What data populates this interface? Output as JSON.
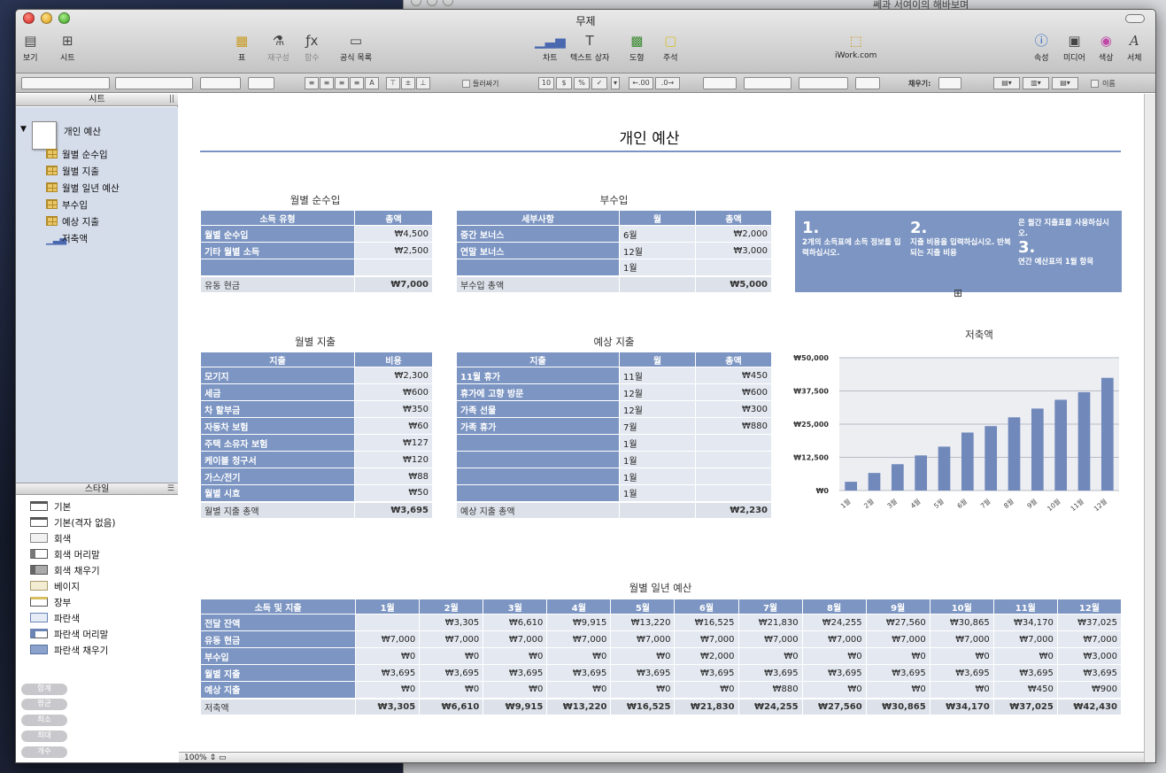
{
  "window": {
    "title": "무제"
  },
  "background_window": {
    "title": "쎄과 서여이의 해바보며"
  },
  "toolbar": {
    "view": "보기",
    "sheet": "시트",
    "table": "표",
    "reorganize": "재구성",
    "function": "함수",
    "formula_list": "공식 목록",
    "chart": "차트",
    "textbox": "텍스트 상자",
    "shape": "도형",
    "comment": "주석",
    "iwork": "iWork.com",
    "inspector": "속성",
    "media": "미디어",
    "colors": "색상",
    "fonts": "서체"
  },
  "formatbar": {
    "wrap": "들러싸기",
    "fill_label": "채우기:",
    "name_label": "이름",
    "dec_more": "←.00",
    "dec_less": ".0→"
  },
  "sidebar": {
    "sheet_header": "시트",
    "document": "개인 예산",
    "sheets": [
      {
        "label": "월별 순수입",
        "icon": "table-icon"
      },
      {
        "label": "월별 지출",
        "icon": "table-icon"
      },
      {
        "label": "월별 일년 예산",
        "icon": "table-icon"
      },
      {
        "label": "부수입",
        "icon": "table-icon"
      },
      {
        "label": "예상 지출",
        "icon": "table-icon"
      },
      {
        "label": "저축액",
        "icon": "bar-chart-icon"
      }
    ],
    "style_header": "스타일",
    "styles": [
      {
        "label": "기본"
      },
      {
        "label": "기본(격자 없음)"
      },
      {
        "label": "회색"
      },
      {
        "label": "회색 머리말"
      },
      {
        "label": "회색 채우기"
      },
      {
        "label": "베이지"
      },
      {
        "label": "장부"
      },
      {
        "label": "파란색"
      },
      {
        "label": "파란색 머리말"
      },
      {
        "label": "파란색 채우기"
      }
    ],
    "functions": [
      "합계",
      "평균",
      "최소",
      "최대",
      "개수"
    ]
  },
  "document": {
    "title": "개인 예산",
    "net_income": {
      "caption": "월별 순수입",
      "headers": [
        "소득 유형",
        "총액"
      ],
      "rows": [
        [
          "월별 순수입",
          "₩4,500"
        ],
        [
          "기타 월별 소득",
          "₩2,500"
        ],
        [
          "",
          ""
        ]
      ],
      "footer": [
        "유동 현금",
        "₩7,000"
      ]
    },
    "extra_income": {
      "caption": "부수입",
      "headers": [
        "세부사항",
        "월",
        "총액"
      ],
      "rows": [
        [
          "중간 보너스",
          "6월",
          "₩2,000"
        ],
        [
          "연말 보너스",
          "12월",
          "₩3,000"
        ],
        [
          "",
          "1월",
          ""
        ]
      ],
      "footer": [
        "부수입 총액",
        "",
        "₩5,000"
      ]
    },
    "instructions": [
      {
        "num": "1.",
        "text": "2개의 소득표에 소득 정보를 입력하십시오."
      },
      {
        "num": "2.",
        "text": "지출 비용을 입력하십시오. 반복되는 지출 비용"
      },
      {
        "num": "3.",
        "pre": "은 월간 지출표를 사용하십시오.",
        "text": "연간 예산표의 1월 항목"
      }
    ],
    "monthly_expenses": {
      "caption": "월별 지출",
      "headers": [
        "지출",
        "비용"
      ],
      "rows": [
        [
          "모기지",
          "₩2,300"
        ],
        [
          "세금",
          "₩600"
        ],
        [
          "차 할부금",
          "₩350"
        ],
        [
          "자동차 보험",
          "₩60"
        ],
        [
          "주택 소유자 보험",
          "₩127"
        ],
        [
          "케이블 청구서",
          "₩120"
        ],
        [
          "가스/전기",
          "₩88"
        ],
        [
          "월별 시효",
          "₩50"
        ]
      ],
      "footer": [
        "월별 지출 총액",
        "₩3,695"
      ]
    },
    "expected_expenses": {
      "caption": "예상 지출",
      "headers": [
        "지출",
        "월",
        "총액"
      ],
      "rows": [
        [
          "11월 휴가",
          "11월",
          "₩450"
        ],
        [
          "휴가에 고향 방문",
          "12월",
          "₩600"
        ],
        [
          "가족 선물",
          "12월",
          "₩300"
        ],
        [
          "가족 휴가",
          "7월",
          "₩880"
        ],
        [
          "",
          "1월",
          ""
        ],
        [
          "",
          "1월",
          ""
        ],
        [
          "",
          "1월",
          ""
        ],
        [
          "",
          "1월",
          ""
        ]
      ],
      "footer": [
        "예상 지출 총액",
        "",
        "₩2,230"
      ]
    },
    "annual_budget": {
      "caption": "월별 일년 예산",
      "headers": [
        "소득 및 지출",
        "1월",
        "2월",
        "3월",
        "4월",
        "5월",
        "6월",
        "7월",
        "8월",
        "9월",
        "10월",
        "11월",
        "12월"
      ],
      "rows": [
        [
          "전달 잔액",
          "",
          "₩3,305",
          "₩6,610",
          "₩9,915",
          "₩13,220",
          "₩16,525",
          "₩21,830",
          "₩24,255",
          "₩27,560",
          "₩30,865",
          "₩34,170",
          "₩37,025"
        ],
        [
          "유동 현금",
          "₩7,000",
          "₩7,000",
          "₩7,000",
          "₩7,000",
          "₩7,000",
          "₩7,000",
          "₩7,000",
          "₩7,000",
          "₩7,000",
          "₩7,000",
          "₩7,000",
          "₩7,000"
        ],
        [
          "부수입",
          "₩0",
          "₩0",
          "₩0",
          "₩0",
          "₩0",
          "₩2,000",
          "₩0",
          "₩0",
          "₩0",
          "₩0",
          "₩0",
          "₩3,000"
        ],
        [
          "월별 지출",
          "₩3,695",
          "₩3,695",
          "₩3,695",
          "₩3,695",
          "₩3,695",
          "₩3,695",
          "₩3,695",
          "₩3,695",
          "₩3,695",
          "₩3,695",
          "₩3,695",
          "₩3,695"
        ],
        [
          "예상 지출",
          "₩0",
          "₩0",
          "₩0",
          "₩0",
          "₩0",
          "₩0",
          "₩880",
          "₩0",
          "₩0",
          "₩0",
          "₩450",
          "₩900"
        ]
      ],
      "footer": [
        "저축액",
        "₩3,305",
        "₩6,610",
        "₩9,915",
        "₩13,220",
        "₩16,525",
        "₩21,830",
        "₩24,255",
        "₩27,560",
        "₩30,865",
        "₩34,170",
        "₩37,025",
        "₩42,430"
      ]
    }
  },
  "chart_data": {
    "type": "bar",
    "title": "저축액",
    "categories": [
      "1월",
      "2월",
      "3월",
      "4월",
      "5월",
      "6월",
      "7월",
      "8월",
      "9월",
      "10월",
      "11월",
      "12월"
    ],
    "values": [
      3305,
      6610,
      9915,
      13220,
      16525,
      21830,
      24255,
      27560,
      30865,
      34170,
      37025,
      42430
    ],
    "ylim": [
      0,
      50000
    ],
    "yticks": [
      0,
      12500,
      25000,
      37500,
      50000
    ],
    "ytick_labels": [
      "₩0",
      "₩12,500",
      "₩25,000",
      "₩37,500",
      "₩50,000"
    ],
    "grid": true,
    "bar_color": "#7188bb"
  },
  "statusbar": {
    "zoom": "100%"
  },
  "colors": {
    "table_header": "#7c95c2",
    "table_cell": "#e4e9f1",
    "sidebar_sheets": "#d5dcea"
  }
}
